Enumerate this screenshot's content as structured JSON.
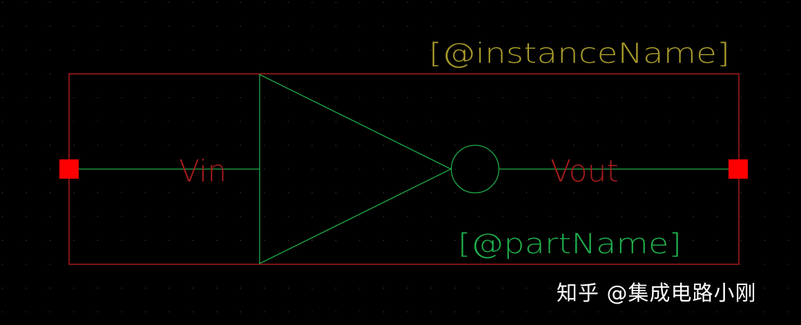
{
  "schematic": {
    "instance_label": "[@instanceName]",
    "part_label": "[@partName]",
    "pin_in_label": "Vin",
    "pin_out_label": "Vout"
  },
  "watermark": "知乎 @集成电路小刚",
  "colors": {
    "background": "#000000",
    "grid_dot": "#5a5a5a",
    "boundary": "#c81e1e",
    "pin": "#ff0000",
    "symbol": "#1fae4a",
    "pin_text": "#a51c1c",
    "instance_text": "#a89a2a",
    "part_text": "#1fae4a",
    "watermark_text": "#ffffff"
  }
}
